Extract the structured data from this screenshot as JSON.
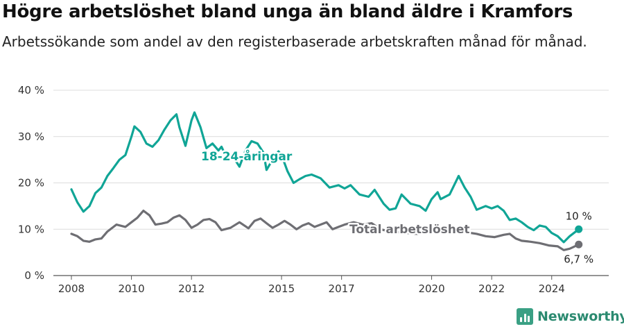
{
  "title": "Högre arbetslöshet bland unga än bland äldre i Kramfors",
  "subtitle": "Arbetssökande som andel av den registerbaserade arbetskraften månad för månad.",
  "brand": {
    "name": "Newsworthy",
    "icon": "bar-chart-logo-icon",
    "color": "#3aa084"
  },
  "chart_data": {
    "type": "line",
    "x_unit": "year",
    "xlim": [
      2007.4,
      2025.9
    ],
    "ylim": [
      0,
      40
    ],
    "y_ticks": [
      {
        "value": 0,
        "label": "0 %"
      },
      {
        "value": 10,
        "label": "10 %"
      },
      {
        "value": 20,
        "label": "20 %"
      },
      {
        "value": 30,
        "label": "30 %"
      },
      {
        "value": 40,
        "label": "40 %"
      }
    ],
    "x_ticks": [
      {
        "value": 2008,
        "label": "2008"
      },
      {
        "value": 2010,
        "label": "2010"
      },
      {
        "value": 2012,
        "label": "2012"
      },
      {
        "value": 2015,
        "label": "2015"
      },
      {
        "value": 2017,
        "label": "2017"
      },
      {
        "value": 2020,
        "label": "2020"
      },
      {
        "value": 2022,
        "label": "2022"
      },
      {
        "value": 2024,
        "label": "2024"
      }
    ],
    "grid": true,
    "series": [
      {
        "name": "18-24-åringar",
        "color": "#10a596",
        "end_label": "10 %",
        "points": [
          [
            2008.0,
            18.6
          ],
          [
            2008.2,
            15.8
          ],
          [
            2008.4,
            13.8
          ],
          [
            2008.6,
            15.0
          ],
          [
            2008.8,
            17.8
          ],
          [
            2009.0,
            19.0
          ],
          [
            2009.2,
            21.5
          ],
          [
            2009.4,
            23.2
          ],
          [
            2009.6,
            25.0
          ],
          [
            2009.8,
            26.0
          ],
          [
            2010.0,
            30.0
          ],
          [
            2010.1,
            32.2
          ],
          [
            2010.3,
            31.0
          ],
          [
            2010.5,
            28.5
          ],
          [
            2010.7,
            27.8
          ],
          [
            2010.9,
            29.2
          ],
          [
            2011.1,
            31.5
          ],
          [
            2011.3,
            33.5
          ],
          [
            2011.5,
            34.8
          ],
          [
            2011.6,
            32.0
          ],
          [
            2011.8,
            28.0
          ],
          [
            2012.0,
            33.5
          ],
          [
            2012.1,
            35.2
          ],
          [
            2012.3,
            32.0
          ],
          [
            2012.5,
            27.5
          ],
          [
            2012.7,
            28.5
          ],
          [
            2012.9,
            27.0
          ],
          [
            2013.0,
            27.8
          ],
          [
            2013.2,
            25.0
          ],
          [
            2013.4,
            25.5
          ],
          [
            2013.6,
            23.5
          ],
          [
            2013.8,
            27.0
          ],
          [
            2014.0,
            29.0
          ],
          [
            2014.2,
            28.5
          ],
          [
            2014.4,
            26.5
          ],
          [
            2014.5,
            22.8
          ],
          [
            2014.7,
            25.0
          ],
          [
            2014.9,
            26.8
          ],
          [
            2015.0,
            26.0
          ],
          [
            2015.2,
            22.5
          ],
          [
            2015.4,
            20.0
          ],
          [
            2015.6,
            20.8
          ],
          [
            2015.8,
            21.5
          ],
          [
            2016.0,
            21.8
          ],
          [
            2016.3,
            21.0
          ],
          [
            2016.6,
            19.0
          ],
          [
            2016.9,
            19.5
          ],
          [
            2017.1,
            18.8
          ],
          [
            2017.3,
            19.5
          ],
          [
            2017.6,
            17.5
          ],
          [
            2017.9,
            17.0
          ],
          [
            2018.1,
            18.5
          ],
          [
            2018.4,
            15.5
          ],
          [
            2018.6,
            14.2
          ],
          [
            2018.8,
            14.5
          ],
          [
            2019.0,
            17.5
          ],
          [
            2019.3,
            15.5
          ],
          [
            2019.6,
            15.0
          ],
          [
            2019.8,
            14.0
          ],
          [
            2020.0,
            16.5
          ],
          [
            2020.2,
            18.0
          ],
          [
            2020.3,
            16.5
          ],
          [
            2020.6,
            17.5
          ],
          [
            2020.9,
            21.5
          ],
          [
            2021.1,
            19.0
          ],
          [
            2021.3,
            17.0
          ],
          [
            2021.5,
            14.2
          ],
          [
            2021.8,
            15.0
          ],
          [
            2022.0,
            14.5
          ],
          [
            2022.2,
            15.0
          ],
          [
            2022.4,
            14.0
          ],
          [
            2022.6,
            12.0
          ],
          [
            2022.8,
            12.3
          ],
          [
            2023.0,
            11.5
          ],
          [
            2023.2,
            10.5
          ],
          [
            2023.4,
            9.8
          ],
          [
            2023.6,
            10.8
          ],
          [
            2023.8,
            10.5
          ],
          [
            2024.0,
            9.2
          ],
          [
            2024.2,
            8.5
          ],
          [
            2024.4,
            7.2
          ],
          [
            2024.6,
            8.5
          ],
          [
            2024.9,
            10.0
          ]
        ]
      },
      {
        "name": "Total arbetslöshet",
        "color": "#6e6e73",
        "end_label": "6,7 %",
        "points": [
          [
            2008.0,
            9.0
          ],
          [
            2008.2,
            8.5
          ],
          [
            2008.4,
            7.5
          ],
          [
            2008.6,
            7.3
          ],
          [
            2008.8,
            7.8
          ],
          [
            2009.0,
            8.0
          ],
          [
            2009.2,
            9.5
          ],
          [
            2009.5,
            11.0
          ],
          [
            2009.8,
            10.5
          ],
          [
            2010.0,
            11.5
          ],
          [
            2010.2,
            12.5
          ],
          [
            2010.4,
            14.0
          ],
          [
            2010.6,
            13.0
          ],
          [
            2010.8,
            11.0
          ],
          [
            2011.0,
            11.2
          ],
          [
            2011.2,
            11.5
          ],
          [
            2011.4,
            12.5
          ],
          [
            2011.6,
            13.0
          ],
          [
            2011.8,
            12.0
          ],
          [
            2012.0,
            10.3
          ],
          [
            2012.2,
            11.0
          ],
          [
            2012.4,
            12.0
          ],
          [
            2012.6,
            12.2
          ],
          [
            2012.8,
            11.5
          ],
          [
            2013.0,
            9.8
          ],
          [
            2013.3,
            10.3
          ],
          [
            2013.6,
            11.5
          ],
          [
            2013.9,
            10.2
          ],
          [
            2014.1,
            11.8
          ],
          [
            2014.3,
            12.3
          ],
          [
            2014.5,
            11.3
          ],
          [
            2014.7,
            10.3
          ],
          [
            2014.9,
            11.0
          ],
          [
            2015.1,
            11.8
          ],
          [
            2015.3,
            11.0
          ],
          [
            2015.5,
            10.0
          ],
          [
            2015.7,
            10.8
          ],
          [
            2015.9,
            11.3
          ],
          [
            2016.1,
            10.5
          ],
          [
            2016.3,
            11.0
          ],
          [
            2016.5,
            11.5
          ],
          [
            2016.7,
            10.0
          ],
          [
            2016.9,
            10.5
          ],
          [
            2017.1,
            11.0
          ],
          [
            2017.4,
            11.5
          ],
          [
            2017.7,
            11.0
          ],
          [
            2018.0,
            11.3
          ],
          [
            2018.3,
            10.0
          ],
          [
            2018.6,
            9.5
          ],
          [
            2019.0,
            9.3
          ],
          [
            2019.5,
            9.0
          ],
          [
            2020.0,
            9.5
          ],
          [
            2020.5,
            9.8
          ],
          [
            2021.0,
            9.5
          ],
          [
            2021.5,
            9.0
          ],
          [
            2021.8,
            8.5
          ],
          [
            2022.1,
            8.3
          ],
          [
            2022.4,
            8.8
          ],
          [
            2022.6,
            9.0
          ],
          [
            2022.8,
            8.0
          ],
          [
            2023.0,
            7.5
          ],
          [
            2023.3,
            7.3
          ],
          [
            2023.6,
            7.0
          ],
          [
            2023.9,
            6.5
          ],
          [
            2024.2,
            6.3
          ],
          [
            2024.4,
            5.5
          ],
          [
            2024.6,
            5.8
          ],
          [
            2024.9,
            6.7
          ]
        ]
      }
    ]
  }
}
